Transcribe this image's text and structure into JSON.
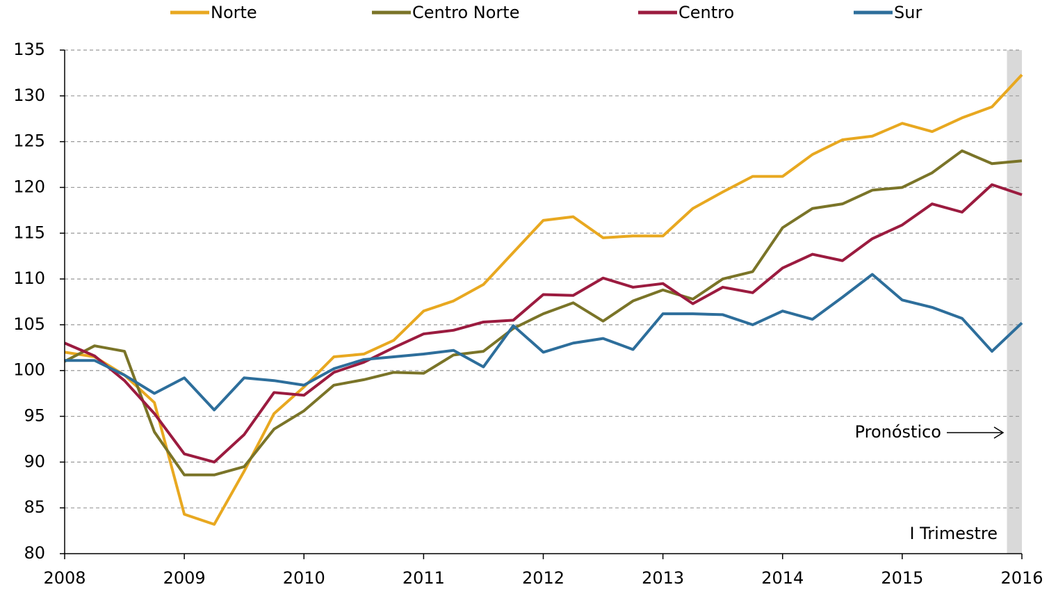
{
  "chart_data": {
    "type": "line",
    "x": [
      2008,
      2008.25,
      2008.5,
      2008.75,
      2009,
      2009.25,
      2009.5,
      2009.75,
      2010,
      2010.25,
      2010.5,
      2010.75,
      2011,
      2011.25,
      2011.5,
      2011.75,
      2012,
      2012.25,
      2012.5,
      2012.75,
      2013,
      2013.25,
      2013.5,
      2013.75,
      2014,
      2014.25,
      2014.5,
      2014.75,
      2015,
      2015.25,
      2015.5,
      2015.75,
      2016
    ],
    "series": [
      {
        "name": "Norte",
        "color": "#e8a820",
        "values": [
          102.0,
          101.5,
          99.5,
          96.5,
          84.3,
          83.2,
          89.0,
          95.3,
          98.2,
          101.5,
          101.8,
          103.3,
          106.5,
          107.6,
          109.4,
          112.9,
          116.4,
          116.8,
          114.5,
          114.7,
          114.7,
          117.7,
          119.5,
          121.2,
          121.2,
          123.6,
          125.2,
          125.6,
          127.0,
          126.1,
          127.6,
          128.8,
          132.3
        ]
      },
      {
        "name": "Centro Norte",
        "color": "#7a7428",
        "values": [
          101.0,
          102.7,
          102.1,
          93.3,
          88.6,
          88.6,
          89.5,
          93.6,
          95.6,
          98.4,
          99.0,
          99.8,
          99.7,
          101.7,
          102.1,
          104.6,
          106.2,
          107.4,
          105.4,
          107.6,
          108.8,
          107.8,
          110.0,
          110.8,
          115.6,
          117.7,
          118.2,
          119.7,
          120.0,
          121.6,
          124.0,
          122.6,
          122.9
        ]
      },
      {
        "name": "Centro",
        "color": "#9b1b3f",
        "values": [
          103.0,
          101.6,
          98.9,
          95.3,
          90.9,
          90.0,
          93.0,
          97.6,
          97.3,
          99.8,
          100.9,
          102.5,
          104.0,
          104.4,
          105.3,
          105.5,
          108.3,
          108.2,
          110.1,
          109.1,
          109.5,
          107.3,
          109.1,
          108.5,
          111.2,
          112.7,
          112.0,
          114.4,
          115.9,
          118.2,
          117.3,
          120.3,
          119.2
        ]
      },
      {
        "name": "Sur",
        "color": "#2d6e9b",
        "values": [
          101.1,
          101.1,
          99.5,
          97.5,
          99.2,
          95.7,
          99.2,
          98.9,
          98.4,
          100.2,
          101.2,
          101.5,
          101.8,
          102.2,
          100.4,
          104.9,
          102.0,
          103.0,
          103.5,
          102.3,
          106.2,
          106.2,
          106.1,
          105.0,
          106.5,
          105.6,
          108.0,
          110.5,
          107.7,
          106.9,
          105.7,
          102.1,
          105.2
        ]
      }
    ],
    "xlim": [
      2008,
      2016
    ],
    "xticks": [
      2008,
      2009,
      2010,
      2011,
      2012,
      2013,
      2014,
      2015,
      2016
    ],
    "ylim": [
      80,
      135
    ],
    "yticks": [
      80,
      85,
      90,
      95,
      100,
      105,
      110,
      115,
      120,
      125,
      130,
      135
    ],
    "grid": true,
    "legend": "top",
    "shaded_region": {
      "xlim": [
        2015.875,
        2016
      ],
      "color": "#d9d9d9"
    },
    "annotations": [
      "Pronóstico",
      "I Trimestre"
    ]
  }
}
